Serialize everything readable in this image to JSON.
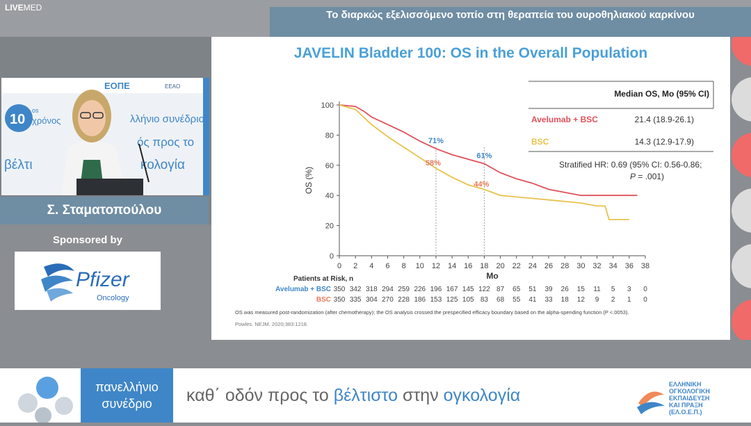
{
  "logo": {
    "live": "LIVE",
    "med": "MED"
  },
  "header": {
    "title": "Το διαρκώς εξελισσόμενο τοπίο στη θεραπεία του ουροθηλιακού καρκίνου"
  },
  "speaker": {
    "name": "Σ. Σταματοπούλου",
    "backdrop_years": "10",
    "backdrop_os": "os",
    "backdrop_xronos": "χρόνος",
    "backdrop_line1": "λλήνιο συνέδριο",
    "backdrop_line2": "ός προς το",
    "backdrop_line3": "βέλτι",
    "backdrop_line4": "κολογία",
    "backdrop_eope": "ΕΟΠΕ",
    "backdrop_eeao": "EEAO"
  },
  "sponsor": {
    "label": "Sponsored by",
    "brand": "Pfizer",
    "sub": "Oncology"
  },
  "slide": {
    "title": "JAVELIN Bladder 100: OS in the Overall Population",
    "table": {
      "header": "Median OS, Mo (95% CI)",
      "rows": [
        {
          "name": "Avelumab + BSC",
          "value": "21.4 (18.9-26.1)",
          "color": "#e0505a"
        },
        {
          "name": "BSC",
          "value": "14.3 (12.9-17.9)",
          "color": "#e8c24a"
        }
      ],
      "hr_line1": "Stratified HR: 0.69 (95% CI: 0.56-0.86;",
      "hr_p": "P",
      "hr_line2": " = .001)"
    },
    "risk_title": "Patients at Risk, n",
    "risk": [
      {
        "name": "Avelumab + BSC",
        "color": "#3f86c8",
        "values": [
          "350",
          "342",
          "318",
          "294",
          "259",
          "226",
          "196",
          "167",
          "145",
          "122",
          "87",
          "65",
          "51",
          "39",
          "26",
          "15",
          "11",
          "5",
          "3",
          "0"
        ]
      },
      {
        "name": "BSC",
        "color": "#e87a5a",
        "values": [
          "350",
          "335",
          "304",
          "270",
          "228",
          "186",
          "153",
          "125",
          "105",
          "83",
          "68",
          "55",
          "41",
          "33",
          "18",
          "12",
          "9",
          "2",
          "1",
          "0"
        ]
      }
    ],
    "footnote": "OS was measured post-randomization (after chemotherapy); the OS analysis crossed the prespecified efficacy boundary based on the alpha-spending function (P <.0053).",
    "citation": "Powles. NEJM. 2020;383:1218."
  },
  "chart_data": {
    "type": "line",
    "title": "",
    "xlabel": "Mo",
    "ylabel": "OS (%)",
    "xlim": [
      0,
      38
    ],
    "ylim": [
      0,
      100
    ],
    "xticks": [
      0,
      2,
      4,
      6,
      8,
      10,
      12,
      14,
      16,
      18,
      20,
      22,
      24,
      26,
      28,
      30,
      32,
      34,
      36,
      38
    ],
    "yticks": [
      0,
      20,
      40,
      60,
      80,
      100
    ],
    "annotations": [
      {
        "text": "71%",
        "x": 12,
        "y": 71,
        "color": "#3f86c8"
      },
      {
        "text": "61%",
        "x": 18,
        "y": 61,
        "color": "#3f86c8"
      },
      {
        "text": "58%",
        "x": 12,
        "y": 58,
        "color": "#e87a5a"
      },
      {
        "text": "44%",
        "x": 18,
        "y": 44,
        "color": "#e87a5a"
      }
    ],
    "series": [
      {
        "name": "Avelumab + BSC",
        "color": "#e0505a",
        "points": [
          [
            0,
            100
          ],
          [
            2,
            99
          ],
          [
            3,
            96
          ],
          [
            4,
            92
          ],
          [
            6,
            87
          ],
          [
            8,
            82
          ],
          [
            10,
            76
          ],
          [
            12,
            71
          ],
          [
            14,
            67
          ],
          [
            16,
            64
          ],
          [
            18,
            61
          ],
          [
            20,
            55
          ],
          [
            22,
            51
          ],
          [
            24,
            48
          ],
          [
            26,
            44
          ],
          [
            28,
            42
          ],
          [
            30,
            40
          ],
          [
            32,
            40
          ],
          [
            34,
            40
          ],
          [
            37,
            40
          ]
        ]
      },
      {
        "name": "BSC",
        "color": "#e8c24a",
        "points": [
          [
            0,
            100
          ],
          [
            2,
            97
          ],
          [
            3,
            92
          ],
          [
            4,
            87
          ],
          [
            6,
            79
          ],
          [
            8,
            72
          ],
          [
            10,
            65
          ],
          [
            12,
            58
          ],
          [
            14,
            52
          ],
          [
            16,
            47
          ],
          [
            18,
            44
          ],
          [
            20,
            40
          ],
          [
            22,
            39
          ],
          [
            24,
            38
          ],
          [
            26,
            37
          ],
          [
            28,
            36
          ],
          [
            30,
            35
          ],
          [
            32,
            33
          ],
          [
            33,
            33
          ],
          [
            33.5,
            24
          ],
          [
            36,
            24
          ]
        ]
      }
    ]
  },
  "bottom": {
    "blue_line1": "πανελλήνιο",
    "blue_line2": "συνέδριο",
    "slogan_a": "καθ΄ οδόν προς το ",
    "slogan_b": "βέλτιστο",
    "slogan_c": " στην ",
    "slogan_d": "ογκολογία",
    "org1": "ΕΛΛΗΝΙΚΗ",
    "org2": "ΟΓΚΟΛΟΓΙΚΗ",
    "org3": "ΕΚΠΑΙΔΕΥΣΗ",
    "org4": "ΚΑΙ ΠΡΑΞΗ",
    "org5": "(ΕΛ.Ο.Ε.Π.)"
  }
}
